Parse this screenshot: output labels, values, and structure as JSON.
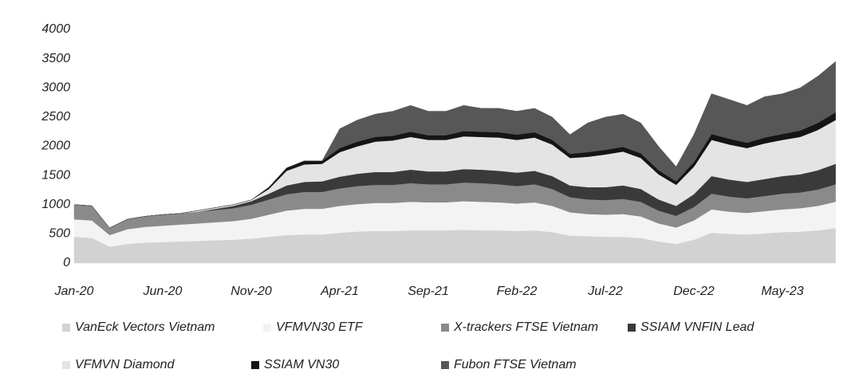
{
  "chart_data": {
    "type": "stacked_area",
    "categories": [
      "Jan-20",
      null,
      null,
      null,
      null,
      "Jun-20",
      null,
      null,
      null,
      null,
      "Nov-20",
      null,
      null,
      null,
      null,
      "Apr-21",
      null,
      null,
      null,
      null,
      "Sep-21",
      null,
      null,
      null,
      null,
      "Feb-22",
      null,
      null,
      null,
      null,
      "Jul-22",
      null,
      null,
      null,
      null,
      "Dec-22",
      null,
      null,
      null,
      null,
      "May-23",
      null,
      null,
      null
    ],
    "ylim": [
      0,
      4000
    ],
    "yticks": [
      0,
      500,
      1000,
      1500,
      2000,
      2500,
      3000,
      3500,
      4000
    ],
    "grid": false,
    "series": [
      {
        "name": "VanEck Vectors Vietnam",
        "color": "#d2d2d2",
        "values": [
          450,
          430,
          280,
          330,
          350,
          360,
          370,
          380,
          390,
          400,
          420,
          450,
          480,
          490,
          490,
          520,
          540,
          550,
          550,
          560,
          560,
          560,
          570,
          560,
          560,
          550,
          560,
          530,
          470,
          460,
          450,
          450,
          430,
          370,
          330,
          400,
          520,
          500,
          490,
          510,
          530,
          540,
          560,
          600
        ]
      },
      {
        "name": "VFMVN30 ETF",
        "color": "#f3f3f3",
        "values": [
          300,
          300,
          200,
          250,
          270,
          280,
          290,
          300,
          310,
          320,
          340,
          380,
          420,
          440,
          440,
          460,
          470,
          480,
          480,
          490,
          480,
          480,
          490,
          490,
          480,
          470,
          480,
          450,
          400,
          380,
          380,
          390,
          370,
          310,
          280,
          330,
          400,
          380,
          370,
          380,
          390,
          400,
          420,
          450
        ]
      },
      {
        "name": "X-trackers FTSE Vietnam",
        "color": "#8a8a8a",
        "values": [
          250,
          250,
          120,
          170,
          180,
          190,
          190,
          200,
          210,
          220,
          240,
          260,
          280,
          290,
          290,
          300,
          310,
          310,
          310,
          320,
          310,
          310,
          320,
          320,
          310,
          300,
          310,
          290,
          260,
          250,
          250,
          260,
          250,
          220,
          200,
          230,
          270,
          260,
          250,
          260,
          270,
          270,
          280,
          300
        ]
      },
      {
        "name": "SSIAM VNFIN Lead",
        "color": "#3a3a3a",
        "values": [
          0,
          0,
          0,
          0,
          0,
          0,
          0,
          0,
          20,
          40,
          60,
          100,
          150,
          170,
          180,
          200,
          210,
          220,
          220,
          230,
          220,
          220,
          230,
          230,
          230,
          230,
          230,
          220,
          200,
          210,
          220,
          230,
          220,
          190,
          170,
          220,
          300,
          290,
          280,
          290,
          300,
          310,
          330,
          350
        ]
      },
      {
        "name": "VFMVN Diamond",
        "color": "#e4e4e4",
        "values": [
          0,
          0,
          0,
          0,
          0,
          0,
          0,
          20,
          20,
          20,
          20,
          80,
          250,
          300,
          300,
          420,
          470,
          520,
          540,
          560,
          540,
          540,
          560,
          560,
          570,
          560,
          570,
          540,
          470,
          520,
          560,
          580,
          530,
          430,
          360,
          470,
          620,
          600,
          580,
          610,
          620,
          640,
          690,
          750
        ]
      },
      {
        "name": "SSIAM VN30",
        "color": "#151515",
        "values": [
          0,
          0,
          0,
          0,
          0,
          0,
          0,
          0,
          0,
          0,
          0,
          30,
          50,
          60,
          50,
          70,
          80,
          80,
          80,
          90,
          80,
          80,
          90,
          90,
          90,
          90,
          90,
          80,
          70,
          80,
          80,
          80,
          80,
          70,
          60,
          80,
          100,
          100,
          90,
          100,
          100,
          110,
          120,
          130
        ]
      },
      {
        "name": "Fubon FTSE Vietnam",
        "color": "#575757",
        "values": [
          0,
          0,
          0,
          0,
          0,
          0,
          0,
          0,
          0,
          0,
          0,
          0,
          0,
          0,
          0,
          330,
          370,
          390,
          420,
          450,
          410,
          410,
          440,
          400,
          410,
          400,
          410,
          390,
          330,
          500,
          560,
          560,
          520,
          410,
          250,
          470,
          690,
          670,
          640,
          700,
          690,
          730,
          800,
          870
        ]
      }
    ]
  }
}
